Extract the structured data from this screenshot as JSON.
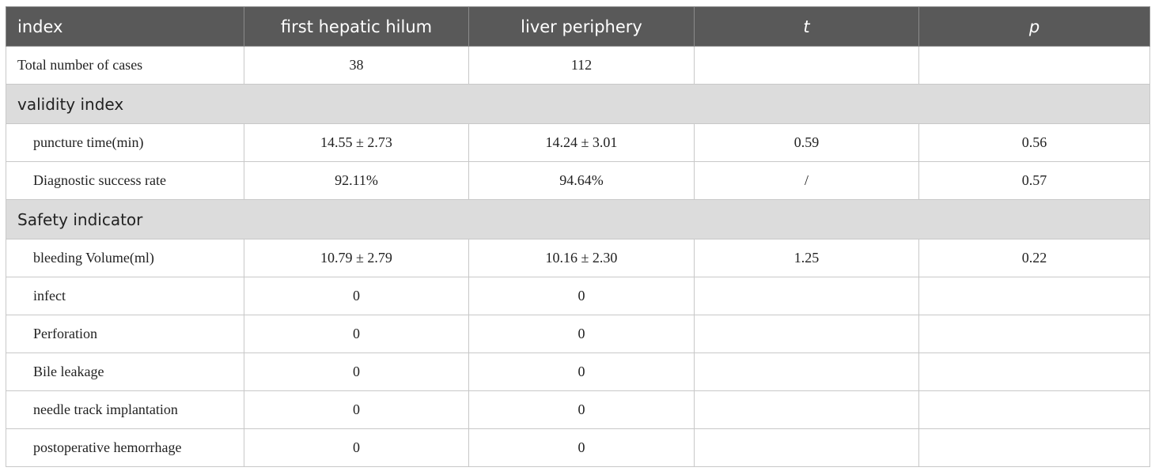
{
  "header": [
    "index",
    "first hepatic hilum",
    "liver periphery",
    "t",
    "p"
  ],
  "summary_row": {
    "label": "Total number of cases",
    "first_hepatic_hilum": "38",
    "liver_periphery": "112"
  },
  "sections": [
    {
      "title": "validity index",
      "rows": [
        {
          "label": "puncture time(min)",
          "first_hepatic_hilum": "14.55 ± 2.73",
          "liver_periphery": "14.24 ± 3.01",
          "t": "0.59",
          "p": "0.56"
        },
        {
          "label": "Diagnostic success rate",
          "first_hepatic_hilum": "92.11%",
          "liver_periphery": "94.64%",
          "t": "/",
          "p": "0.57"
        }
      ]
    },
    {
      "title": "Safety indicator",
      "rows": [
        {
          "label": "bleeding Volume(ml)",
          "first_hepatic_hilum": "10.79 ± 2.79",
          "liver_periphery": "10.16 ± 2.30",
          "t": "1.25",
          "p": "0.22"
        },
        {
          "label": "infect",
          "first_hepatic_hilum": "0",
          "liver_periphery": "0"
        },
        {
          "label": "Perforation",
          "first_hepatic_hilum": "0",
          "liver_periphery": "0"
        },
        {
          "label": "Bile leakage",
          "first_hepatic_hilum": "0",
          "liver_periphery": "0"
        },
        {
          "label": "needle track implantation",
          "first_hepatic_hilum": "0",
          "liver_periphery": "0"
        },
        {
          "label": "postoperative hemorrhage",
          "first_hepatic_hilum": "0",
          "liver_periphery": "0"
        }
      ]
    }
  ]
}
